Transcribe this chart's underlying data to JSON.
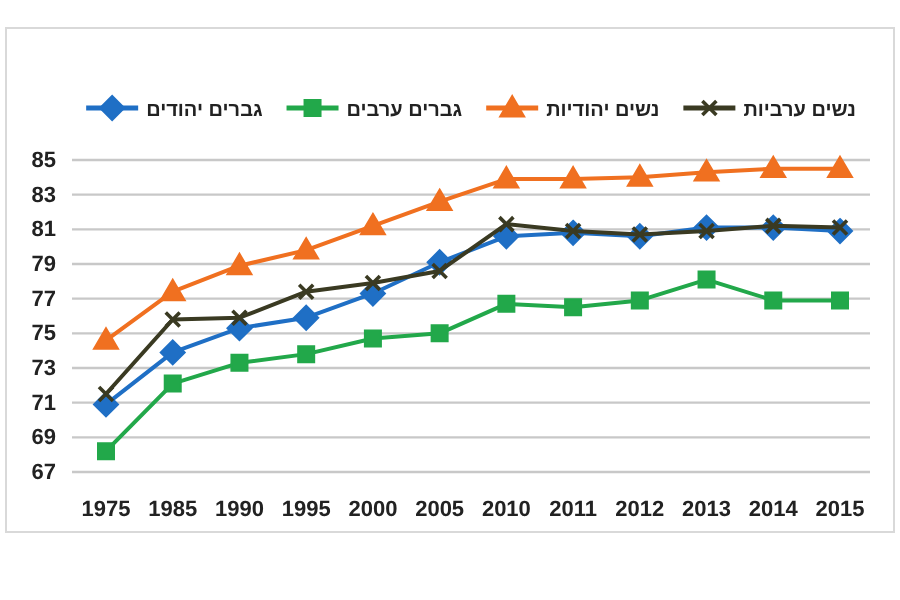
{
  "chart_data": {
    "type": "line",
    "categories": [
      "1975",
      "1985",
      "1990",
      "1995",
      "2000",
      "2005",
      "2010",
      "2011",
      "2012",
      "2013",
      "2014",
      "2015"
    ],
    "ylim": [
      67,
      85
    ],
    "yticks": [
      67,
      69,
      71,
      73,
      75,
      77,
      79,
      81,
      83,
      85
    ],
    "grid": "y",
    "legend": "top",
    "line_style": "solid",
    "series": [
      {
        "name": "גברים יהודים",
        "color": "#1f6fc5",
        "marker": "diamond",
        "values": [
          70.9,
          73.9,
          75.3,
          75.9,
          77.3,
          79.1,
          80.6,
          80.8,
          80.6,
          81.1,
          81.1,
          80.9
        ]
      },
      {
        "name": "גברים ערבים",
        "color": "#22a84a",
        "marker": "square",
        "values": [
          68.2,
          72.1,
          73.3,
          73.8,
          74.7,
          75.0,
          76.7,
          76.5,
          76.9,
          78.1,
          76.9,
          76.9
        ]
      },
      {
        "name": "נשים יהודיות",
        "color": "#f07020",
        "marker": "triangle",
        "values": [
          74.6,
          77.4,
          78.9,
          79.8,
          81.2,
          82.6,
          83.9,
          83.9,
          84.0,
          84.3,
          84.5,
          84.5
        ]
      },
      {
        "name": "נשים ערביות",
        "color": "#3a3a22",
        "marker": "cross",
        "values": [
          71.5,
          75.8,
          75.9,
          77.4,
          77.9,
          78.6,
          81.3,
          80.9,
          80.7,
          80.9,
          81.2,
          81.1
        ]
      }
    ]
  }
}
